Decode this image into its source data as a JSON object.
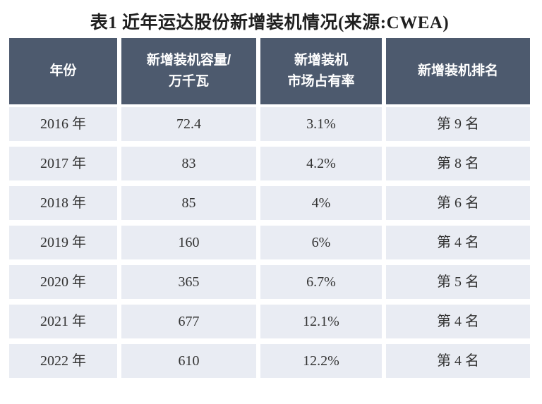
{
  "title": "表1 近年运达股份新增装机情况(来源:CWEA)",
  "colors": {
    "header_bg": "#4d5a6e",
    "row_bg": "#e9ecf3",
    "header_text": "#ffffff",
    "body_text": "#333333",
    "title_text": "#1f1f1f",
    "page_bg": "#ffffff"
  },
  "table": {
    "columns": [
      {
        "id": "year",
        "label": "年份",
        "lines": [
          "年份",
          ""
        ]
      },
      {
        "id": "capacity",
        "label": "新增装机容量/万千瓦",
        "lines": [
          "新增装机容量/",
          "万千瓦"
        ]
      },
      {
        "id": "share",
        "label": "新增装机市场占有率",
        "lines": [
          "新增装机",
          "市场占有率"
        ]
      },
      {
        "id": "rank",
        "label": "新增装机排名",
        "lines": [
          "新增装机排名",
          ""
        ]
      }
    ],
    "rows": [
      {
        "year": "2016 年",
        "capacity": "72.4",
        "share": "3.1%",
        "rank": "第 9 名"
      },
      {
        "year": "2017 年",
        "capacity": "83",
        "share": "4.2%",
        "rank": "第 8 名"
      },
      {
        "year": "2018 年",
        "capacity": "85",
        "share": "4%",
        "rank": "第 6 名"
      },
      {
        "year": "2019 年",
        "capacity": "160",
        "share": "6%",
        "rank": "第 4 名"
      },
      {
        "year": "2020 年",
        "capacity": "365",
        "share": "6.7%",
        "rank": "第 5 名"
      },
      {
        "year": "2021 年",
        "capacity": "677",
        "share": "12.1%",
        "rank": "第 4 名"
      },
      {
        "year": "2022 年",
        "capacity": "610",
        "share": "12.2%",
        "rank": "第 4 名"
      }
    ]
  },
  "chart_data": {
    "type": "table",
    "title": "表1 近年运达股份新增装机情况(来源:CWEA)",
    "columns": [
      "年份",
      "新增装机容量/万千瓦",
      "新增装机市场占有率",
      "新增装机排名"
    ],
    "rows": [
      [
        "2016 年",
        "72.4",
        "3.1%",
        "第 9 名"
      ],
      [
        "2017 年",
        "83",
        "4.2%",
        "第 8 名"
      ],
      [
        "2018 年",
        "85",
        "4%",
        "第 6 名"
      ],
      [
        "2019 年",
        "160",
        "6%",
        "第 4 名"
      ],
      [
        "2020 年",
        "365",
        "6.7%",
        "第 5 名"
      ],
      [
        "2021 年",
        "677",
        "12.1%",
        "第 4 名"
      ],
      [
        "2022 年",
        "610",
        "12.2%",
        "第 4 名"
      ]
    ]
  }
}
